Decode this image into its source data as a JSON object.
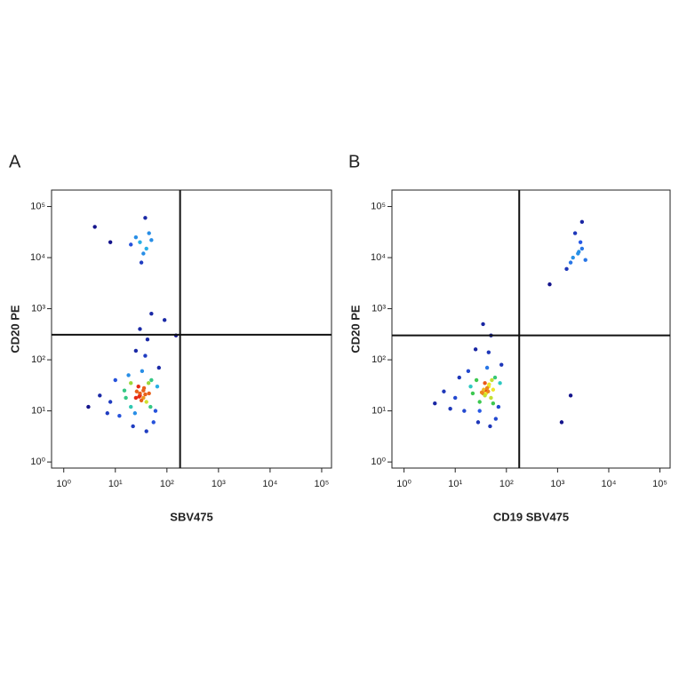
{
  "chart_data": [
    {
      "type": "scatter",
      "panel_label": "A",
      "xlabel": "SBV475",
      "ylabel": "CD20 PE",
      "xlog": true,
      "ylog": true,
      "xlim": [
        0.58,
        155000
      ],
      "ylim": [
        0.76,
        210000
      ],
      "xticks": [
        {
          "value": 1,
          "label": "10⁰"
        },
        {
          "value": 10,
          "label": "10¹"
        },
        {
          "value": 100,
          "label": "10²"
        },
        {
          "value": 1000,
          "label": "10³"
        },
        {
          "value": 10000,
          "label": "10⁴"
        },
        {
          "value": 100000,
          "label": "10⁵"
        }
      ],
      "yticks": [
        {
          "value": 1,
          "label": "10⁰"
        },
        {
          "value": 10,
          "label": "10¹"
        },
        {
          "value": 100,
          "label": "10²"
        },
        {
          "value": 1000,
          "label": "10³"
        },
        {
          "value": 10000,
          "label": "10⁴"
        },
        {
          "value": 100000,
          "label": "10⁵"
        }
      ],
      "gates": {
        "x": 180,
        "y": 310
      },
      "x": [
        30,
        35,
        25,
        40,
        28,
        45,
        20,
        15,
        50,
        12,
        8,
        5,
        60,
        33,
        38,
        42,
        30,
        50,
        25,
        18,
        10,
        7,
        22,
        40,
        55,
        65,
        3,
        70,
        35,
        30,
        26,
        38,
        32,
        29,
        36,
        44,
        16,
        20,
        48,
        24,
        30,
        40,
        25,
        35,
        45,
        20,
        50,
        38,
        8,
        32,
        4,
        90,
        150
      ],
      "values": [
        20,
        25,
        18,
        15,
        30,
        22,
        12,
        25,
        40,
        8,
        15,
        20,
        10,
        60,
        120,
        250,
        400,
        800,
        150,
        50,
        40,
        9,
        5,
        4,
        6,
        30,
        12,
        70,
        18,
        22,
        24,
        21,
        16,
        19,
        28,
        35,
        18,
        35,
        12,
        9,
        20000,
        15000,
        25000,
        12000,
        30000,
        18000,
        22000,
        60000,
        20000,
        8000,
        40000,
        600,
        300
      ]
    },
    {
      "type": "scatter",
      "panel_label": "B",
      "xlabel": "CD19 SBV475",
      "ylabel": "CD20 PE",
      "xlog": true,
      "ylog": true,
      "xlim": [
        0.58,
        158000
      ],
      "ylim": [
        0.76,
        210000
      ],
      "xticks": [
        {
          "value": 1,
          "label": "10⁰"
        },
        {
          "value": 10,
          "label": "10¹"
        },
        {
          "value": 100,
          "label": "10²"
        },
        {
          "value": 1000,
          "label": "10³"
        },
        {
          "value": 10000,
          "label": "10⁴"
        },
        {
          "value": 100000,
          "label": "10⁵"
        }
      ],
      "yticks": [
        {
          "value": 1,
          "label": "10⁰"
        },
        {
          "value": 10,
          "label": "10¹"
        },
        {
          "value": 100,
          "label": "10²"
        },
        {
          "value": 1000,
          "label": "10³"
        },
        {
          "value": 10000,
          "label": "10⁴"
        },
        {
          "value": 100000,
          "label": "10⁵"
        }
      ],
      "gates": {
        "x": 178,
        "y": 300
      },
      "x": [
        40,
        45,
        35,
        50,
        38,
        55,
        30,
        20,
        60,
        15,
        10,
        6,
        70,
        42,
        45,
        50,
        35,
        25,
        18,
        12,
        8,
        28,
        48,
        62,
        75,
        4,
        80,
        40,
        36,
        42,
        44,
        38,
        33,
        46,
        52,
        22,
        26,
        55,
        30,
        2500,
        3000,
        2000,
        2800,
        1800,
        3500,
        2200,
        3000,
        1500,
        2600,
        1800,
        1200,
        700
      ],
      "values": [
        25,
        30,
        22,
        18,
        35,
        26,
        15,
        30,
        45,
        10,
        18,
        24,
        12,
        70,
        140,
        300,
        500,
        160,
        60,
        45,
        11,
        6,
        5,
        7,
        35,
        14,
        80,
        22,
        26,
        28,
        24,
        20,
        23,
        33,
        40,
        22,
        40,
        14,
        10,
        12000,
        15000,
        10000,
        20000,
        8000,
        9000,
        30000,
        50000,
        6000,
        13000,
        20,
        6,
        3000
      ]
    }
  ]
}
